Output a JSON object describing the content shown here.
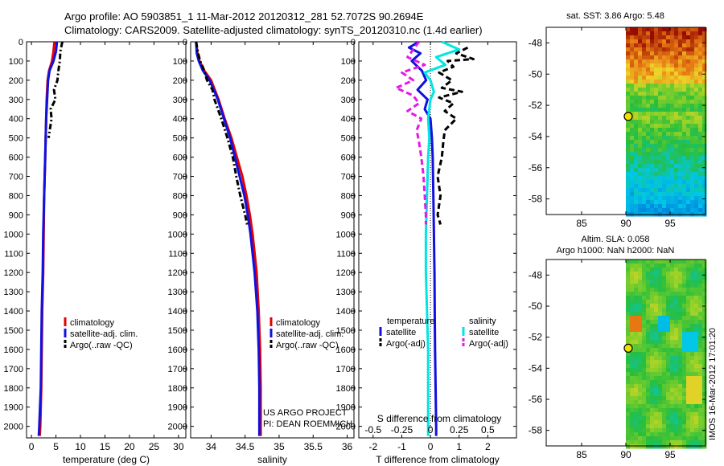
{
  "header": {
    "line1": "Argo profile: AO 5903851_1 11-Mar-2012 20120312_281 52.7072S 90.2694E",
    "line2": "Climatology: CARS2009. Satellite-adjusted climatology: synTS_20120310.nc (1.4d earlier)"
  },
  "colors": {
    "climatology": "#e60000",
    "satellite": "#1010e0",
    "argo": "#000000",
    "sat_salinity": "#00e5e5",
    "argo_salinity": "#e619e6"
  },
  "depth_axis": {
    "ticks": [
      "0",
      "100",
      "200",
      "300",
      "400",
      "500",
      "600",
      "700",
      "800",
      "900",
      "1000",
      "1100",
      "1200",
      "1300",
      "1400",
      "1500",
      "1600",
      "1700",
      "1800",
      "1900",
      "2000"
    ],
    "ylim": [
      0,
      2060
    ]
  },
  "chart_data": [
    {
      "type": "line",
      "id": "temperature",
      "xlabel": "temperature (deg C)",
      "xlim": [
        -1,
        31.5
      ],
      "xticks": [
        "0",
        "5",
        "10",
        "15",
        "20",
        "25",
        "30"
      ],
      "xtick_values": [
        0,
        5,
        10,
        15,
        20,
        25,
        30
      ],
      "legend": [
        "climatology",
        "satellite-adj. clim.",
        "Argo(..raw -QC)"
      ],
      "series": [
        {
          "name": "climatology",
          "style": "solid",
          "depth": [
            0,
            50,
            100,
            150,
            200,
            300,
            400,
            600,
            800,
            1000,
            1200,
            1400,
            1600,
            1800,
            2000,
            2050
          ],
          "values": [
            4.7,
            4.5,
            4.2,
            3.6,
            3.3,
            3.1,
            3.0,
            2.8,
            2.6,
            2.5,
            2.4,
            2.2,
            2.1,
            2.0,
            1.8,
            1.7
          ]
        },
        {
          "name": "satellite-adj. clim.",
          "style": "solid",
          "depth": [
            0,
            50,
            100,
            150,
            200,
            300,
            400,
            600,
            800,
            1000,
            1200,
            1400,
            1600,
            1800,
            2000,
            2050
          ],
          "values": [
            5.2,
            5.0,
            4.5,
            3.7,
            3.4,
            3.2,
            3.0,
            2.8,
            2.6,
            2.4,
            2.3,
            2.1,
            2.0,
            1.9,
            1.6,
            1.5
          ]
        },
        {
          "name": "Argo(..raw -QC)",
          "style": "dashdot",
          "depth": [
            0,
            50,
            100,
            150,
            200,
            250,
            300,
            350,
            400,
            450,
            500
          ],
          "values": [
            6.3,
            5.9,
            5.8,
            5.5,
            5.3,
            4.6,
            4.9,
            3.9,
            4.1,
            3.8,
            3.5
          ]
        }
      ]
    },
    {
      "type": "line",
      "id": "salinity",
      "xlabel": "salinity",
      "xlim": [
        33.7,
        36.1
      ],
      "xticks": [
        "34",
        "34.5",
        "35",
        "35.5",
        "36"
      ],
      "xtick_values": [
        34,
        34.5,
        35,
        35.5,
        36
      ],
      "legend": [
        "climatology",
        "satellite-adj. clim.",
        "Argo(..raw -QC)"
      ],
      "annotation": [
        "US ARGO PROJECT",
        "PI: DEAN ROEMMICH"
      ],
      "series": [
        {
          "name": "climatology",
          "style": "solid",
          "depth": [
            0,
            60,
            100,
            150,
            200,
            300,
            400,
            500,
            600,
            700,
            800,
            900,
            1000,
            1200,
            1400,
            1600,
            1800,
            2000,
            2050
          ],
          "values": [
            33.78,
            33.8,
            33.83,
            33.9,
            34.0,
            34.11,
            34.2,
            34.3,
            34.38,
            34.46,
            34.52,
            34.57,
            34.61,
            34.67,
            34.7,
            34.72,
            34.73,
            34.73,
            34.73
          ]
        },
        {
          "name": "satellite-adj. clim.",
          "style": "solid",
          "depth": [
            0,
            60,
            100,
            150,
            200,
            300,
            400,
            500,
            600,
            700,
            800,
            900,
            1000,
            1200,
            1400,
            1600,
            1800,
            2000,
            2050
          ],
          "values": [
            33.78,
            33.79,
            33.82,
            33.88,
            33.98,
            34.1,
            34.19,
            34.28,
            34.35,
            34.42,
            34.49,
            34.54,
            34.58,
            34.64,
            34.68,
            34.7,
            34.71,
            34.71,
            34.71
          ]
        },
        {
          "name": "Argo(..raw -QC)",
          "style": "dashdot",
          "depth": [
            0,
            60,
            100,
            150,
            200,
            250,
            300,
            400,
            500,
            600,
            700,
            800,
            900,
            950
          ],
          "values": [
            33.78,
            33.81,
            33.84,
            33.9,
            33.94,
            34.02,
            34.05,
            34.15,
            34.24,
            34.32,
            34.37,
            34.43,
            34.5,
            34.53
          ]
        }
      ]
    },
    {
      "type": "line",
      "id": "differences",
      "xlabel": "T difference from climatology",
      "xlabel_top": "S difference from climatology",
      "xlim": [
        -2.5,
        3
      ],
      "xticks": [
        "-2",
        "-1",
        "0",
        "1",
        "2"
      ],
      "xtick_values": [
        -2,
        -1,
        0,
        1,
        2
      ],
      "xticks_top": [
        "-0.5",
        "-0.25",
        "0",
        "0.25",
        "0.5"
      ],
      "xtick_top_values": [
        -0.5,
        -0.25,
        0,
        0.25,
        0.5
      ],
      "legend_title_t": "temperature",
      "legend_title_s": "salinity",
      "legend": [
        "satellite",
        "Argo(-adj)",
        "satellite",
        "Argo(-adj)"
      ],
      "series": [
        {
          "name": "T satellite",
          "style": "solid",
          "color": "satellite",
          "depth": [
            0,
            30,
            60,
            100,
            150,
            200,
            250,
            300,
            350,
            400,
            500,
            600,
            800,
            1000,
            1200,
            1400,
            1600,
            1800,
            2000,
            2050
          ],
          "values": [
            -0.4,
            -0.75,
            -0.35,
            -0.65,
            -0.3,
            -0.15,
            -0.45,
            -0.1,
            -0.2,
            0.0,
            0.05,
            0.08,
            0.1,
            0.12,
            0.14,
            0.15,
            0.16,
            0.18,
            0.2,
            0.2
          ]
        },
        {
          "name": "T Argo(-adj)",
          "style": "dashed",
          "color": "argo",
          "depth": [
            30,
            60,
            90,
            100,
            130,
            160,
            200,
            240,
            260,
            290,
            320,
            360,
            400,
            460,
            520,
            600,
            700,
            800,
            900,
            950
          ],
          "values": [
            1.3,
            0.9,
            1.5,
            0.6,
            0.8,
            0.3,
            0.75,
            0.4,
            1.1,
            0.3,
            0.8,
            0.5,
            0.9,
            0.5,
            0.45,
            0.4,
            0.25,
            0.35,
            0.25,
            0.35
          ]
        },
        {
          "name": "S satellite",
          "style": "solid",
          "color": "sat_salinity",
          "depth": [
            0,
            40,
            80,
            120,
            160,
            200,
            260,
            300,
            400,
            500,
            600,
            800,
            1000,
            1200,
            1400,
            1600,
            1800,
            2000,
            2050
          ],
          "values": [
            0.1,
            0.25,
            0.05,
            0.13,
            -0.05,
            0.0,
            0.03,
            0.0,
            -0.02,
            -0.01,
            -0.02,
            -0.03,
            -0.04,
            -0.04,
            -0.03,
            -0.02,
            -0.02,
            -0.02,
            -0.02
          ]
        },
        {
          "name": "S Argo(-adj)",
          "style": "dashed",
          "color": "argo_salinity",
          "depth": [
            0,
            40,
            80,
            120,
            160,
            200,
            240,
            280,
            320,
            360,
            400,
            460,
            520,
            600,
            700,
            800,
            900,
            950
          ],
          "values": [
            -0.1,
            -0.15,
            -0.2,
            -0.05,
            -0.25,
            -0.15,
            -0.3,
            -0.15,
            -0.1,
            -0.2,
            -0.08,
            -0.12,
            -0.1,
            -0.08,
            -0.06,
            -0.05,
            -0.04,
            -0.04
          ]
        }
      ]
    },
    {
      "type": "heatmap",
      "id": "sst-map",
      "title": "sat. SST: 3.86 Argo: 5.48",
      "xlim": [
        81,
        99
      ],
      "ylim": [
        -59,
        -47
      ],
      "xticks": [
        "85",
        "90",
        "95"
      ],
      "xtick_values": [
        85,
        90,
        95
      ],
      "yticks": [
        "-48",
        "-50",
        "-52",
        "-54",
        "-56",
        "-58"
      ],
      "ytick_values": [
        -48,
        -50,
        -52,
        -54,
        -56,
        -58
      ],
      "data_lon_min": 90,
      "marker": {
        "lon": 90.27,
        "lat": -52.71
      }
    },
    {
      "type": "heatmap",
      "id": "sla-map",
      "title": "Altim. SLA: 0.058",
      "subtitle": "Argo h1000: NaN h2000: NaN",
      "xlim": [
        81,
        99
      ],
      "ylim": [
        -59,
        -47
      ],
      "xticks": [
        "85",
        "90",
        "95"
      ],
      "xtick_values": [
        85,
        90,
        95
      ],
      "yticks": [
        "-48",
        "-50",
        "-52",
        "-54",
        "-56",
        "-58"
      ],
      "ytick_values": [
        -48,
        -50,
        -52,
        -54,
        -56,
        -58
      ],
      "data_lon_min": 90,
      "marker": {
        "lon": 90.27,
        "lat": -52.71
      }
    }
  ],
  "footer": {
    "stamp": "IMOS 16-Mar-2012 17:01:20"
  }
}
